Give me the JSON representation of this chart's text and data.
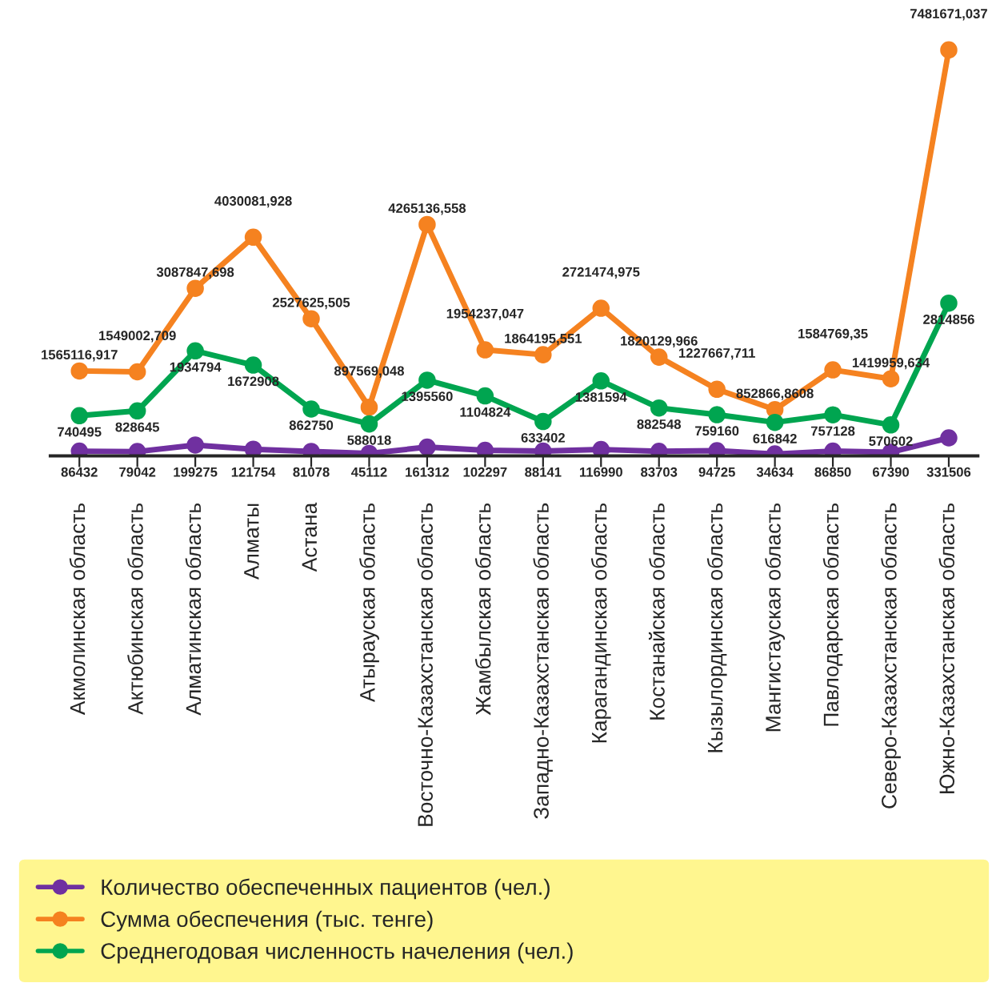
{
  "chart_data": {
    "type": "line",
    "categories": [
      "Акмолинская область",
      "Актюбинская область",
      "Алматинская область",
      "Алматы",
      "Астана",
      "Атырауская область",
      "Восточно-Казахстанская область",
      "Жамбылская область",
      "Западно-Казахстанская область",
      "Карагандинская область",
      "Костанайская область",
      "Кызылординская область",
      "Мангистауская область",
      "Павлодарская область",
      "Северо-Казахстанская область",
      "Южно-Казахстанская область"
    ],
    "series": [
      {
        "name": "Количество обеспеченных пациентов (чел.)",
        "color": "#7030a0",
        "values": [
          86432,
          79042,
          199275,
          121754,
          81078,
          45112,
          161312,
          102297,
          88141,
          116990,
          83703,
          94725,
          34634,
          86850,
          67390,
          331506
        ],
        "value_labels": [
          "86432",
          "79042",
          "199275",
          "121754",
          "81078",
          "45112",
          "161312",
          "102297",
          "88141",
          "116990",
          "83703",
          "94725",
          "34634",
          "86850",
          "67390",
          "331506"
        ]
      },
      {
        "name": "Сумма обеспечения (тыс. тенге)",
        "color": "#f58220",
        "values": [
          1565116.917,
          1549002.709,
          3087847.698,
          4030081.928,
          2527625.505,
          897569.048,
          4265136.558,
          1954237.047,
          1864195.551,
          2721474.975,
          1820129.966,
          1227667.711,
          852866.8608,
          1584769.35,
          1419959.634,
          7481671.037
        ],
        "value_labels": [
          "1565116,917",
          "1549002,709",
          "3087847,698",
          "4030081,928",
          "2527625,505",
          "897569,048",
          "4265136,558",
          "1954237,047",
          "1864195,551",
          "2721474,975",
          "1820129,966",
          "1227667,711",
          "852866,8608",
          "1584769,35",
          "1419959,634",
          "7481671,037"
        ]
      },
      {
        "name": "Среднегодовая численность начеления (чел.)",
        "color": "#00a550",
        "values": [
          740495,
          828645,
          1934794,
          1672908,
          862750,
          588018,
          1395560,
          1104824,
          633402,
          1381594,
          882548,
          759160,
          616842,
          757128,
          570602,
          2814856
        ],
        "value_labels": [
          "740495",
          "828645",
          "1934794",
          "1672908",
          "862750",
          "588018",
          "1395560",
          "1104824",
          "633402",
          "1381594",
          "882548",
          "759160",
          "616842",
          "757128",
          "570602",
          "2814856"
        ]
      }
    ],
    "marker": "circle",
    "legend": "bottom",
    "grid": false,
    "tick_labels": "x"
  }
}
